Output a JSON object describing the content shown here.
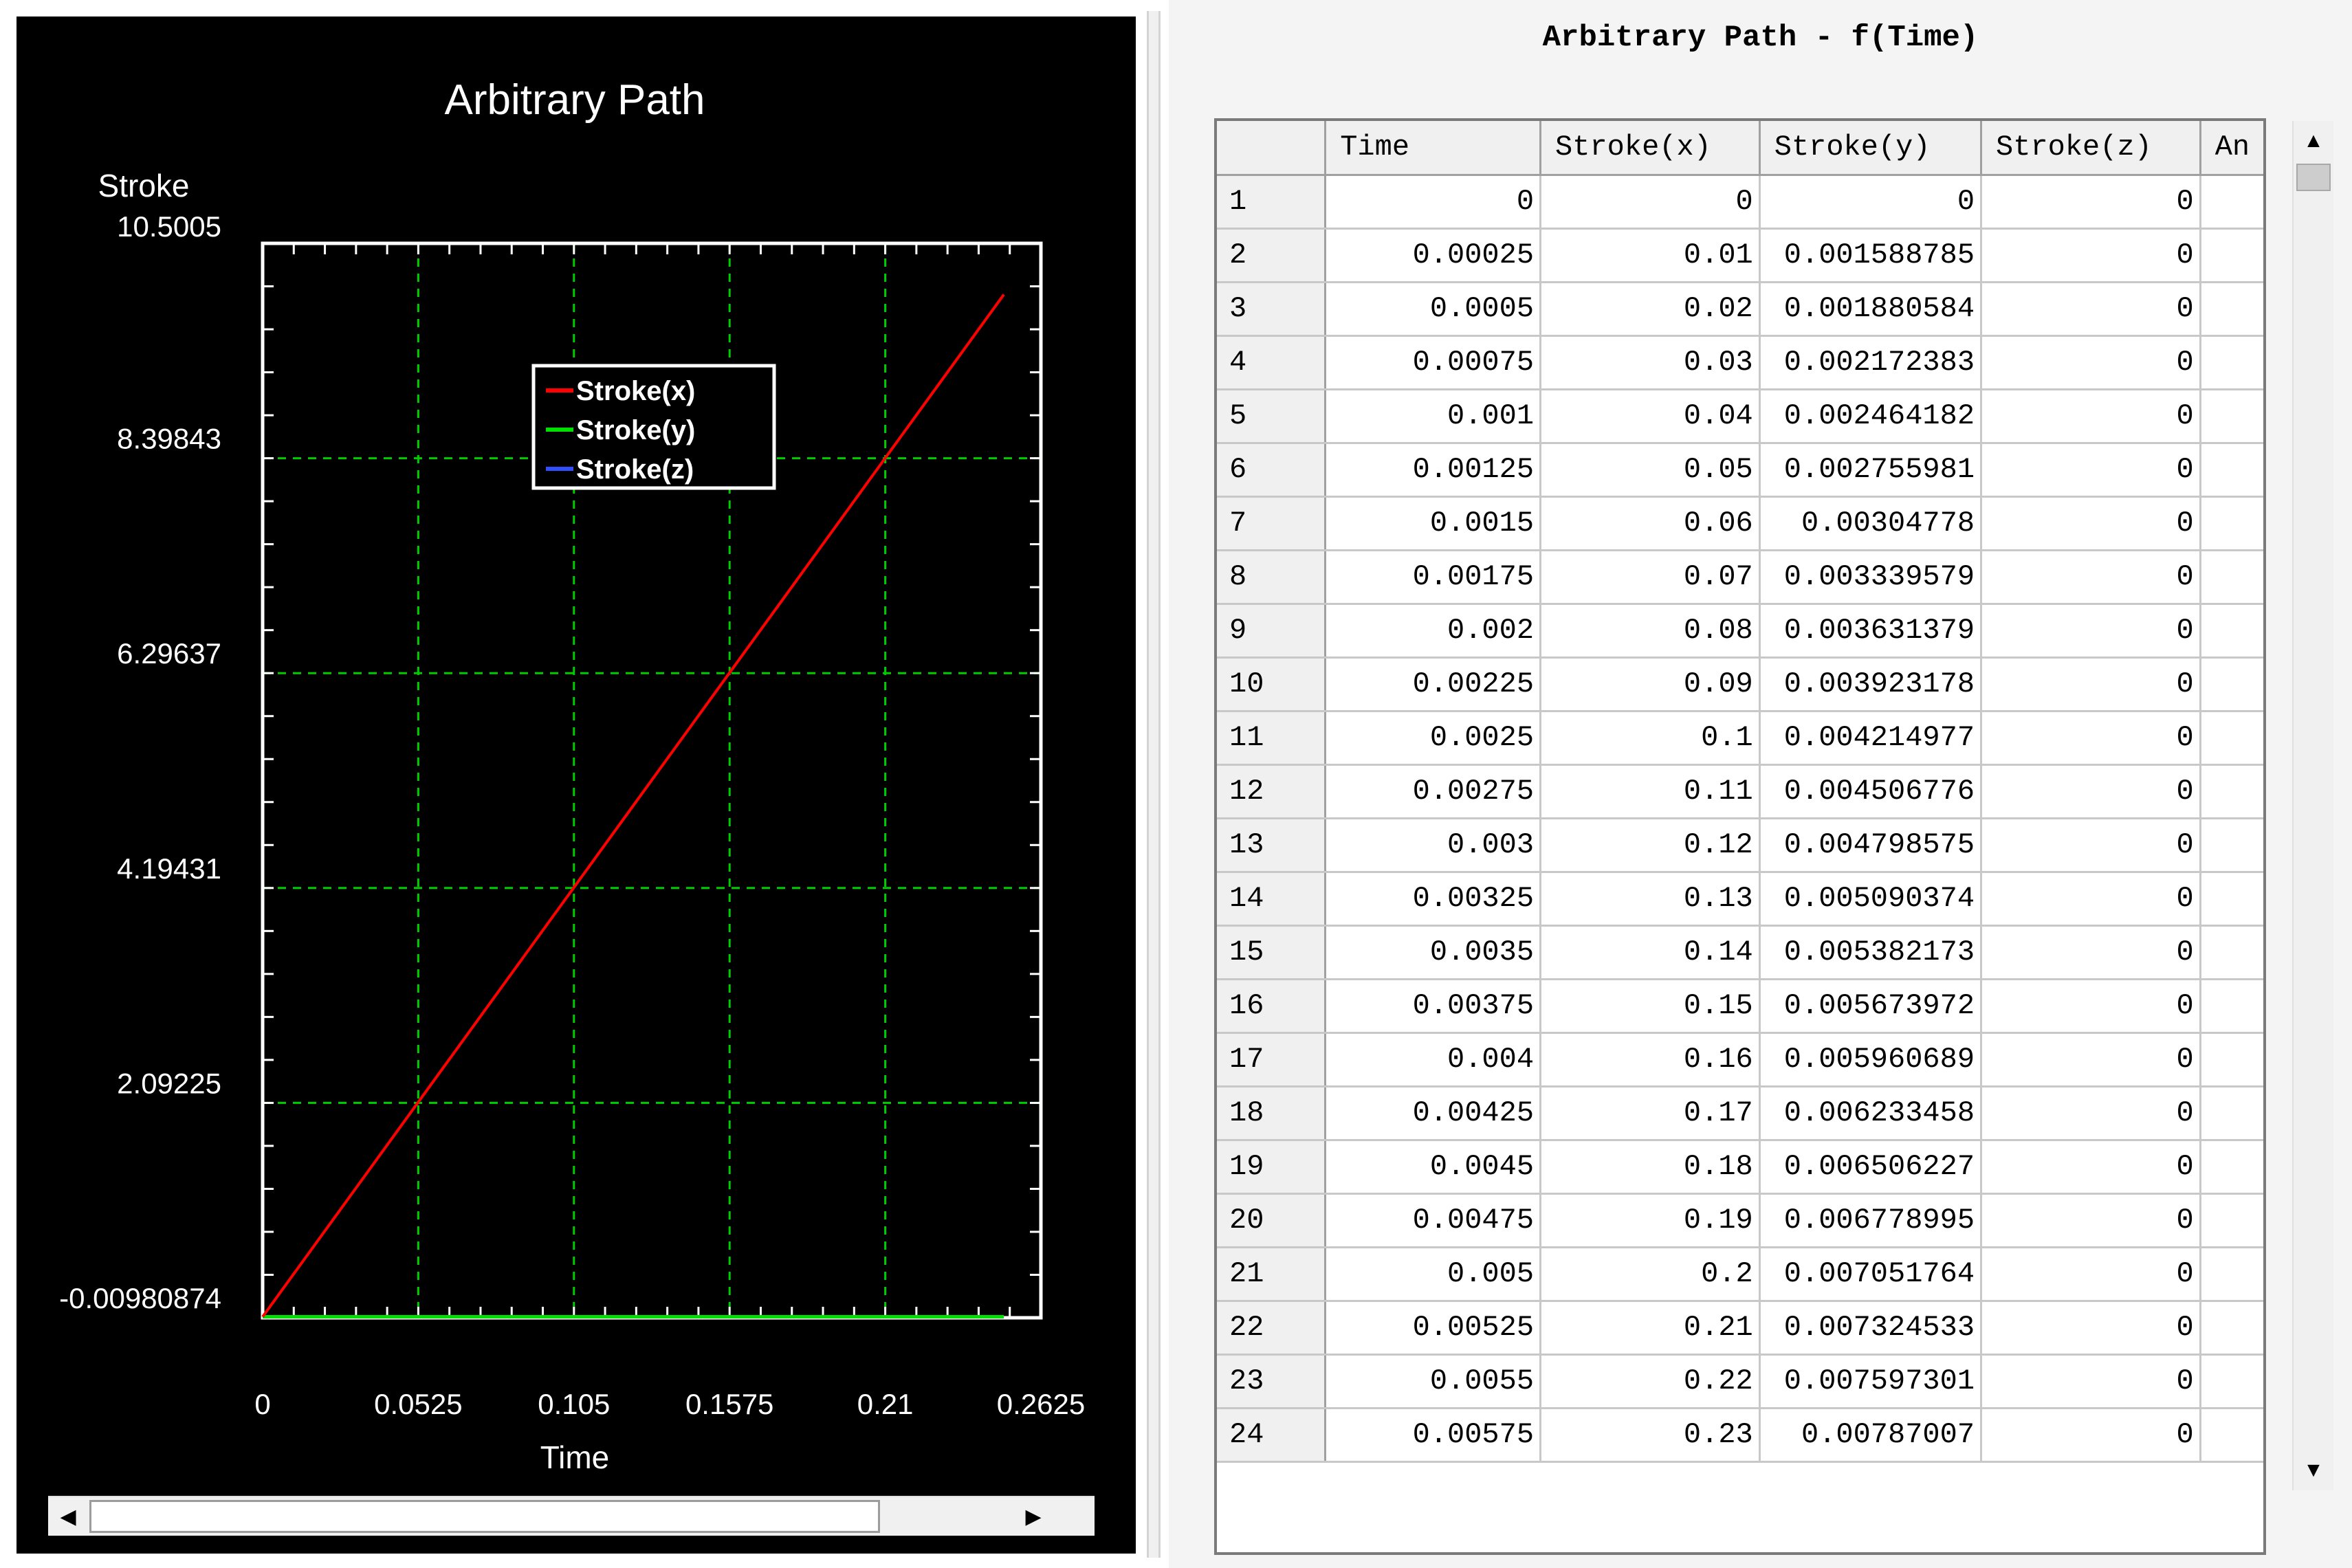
{
  "chart_data": {
    "type": "line",
    "title": "Arbitrary Path",
    "ylabel": "Stroke",
    "xlabel": "Time",
    "x_ticks": [
      0,
      0.0525,
      0.105,
      0.1575,
      0.21,
      0.2625
    ],
    "x_tick_labels": [
      "0",
      "0.0525",
      "0.105",
      "0.1575",
      "0.21",
      "0.2625"
    ],
    "y_ticks": [
      -0.00980874,
      2.09225,
      4.19431,
      6.29637,
      8.39843,
      10.5005
    ],
    "y_tick_labels": [
      "-0.00980874",
      "2.09225",
      "4.19431",
      "6.29637",
      "8.39843",
      "10.5005"
    ],
    "xlim": [
      0,
      0.2625
    ],
    "ylim": [
      -0.00980874,
      10.5005
    ],
    "grid": true,
    "legend_position": "top-center",
    "series": [
      {
        "name": "Stroke(x)",
        "color": "#ff0000",
        "x": [
          0,
          0.25
        ],
        "y": [
          0,
          10
        ]
      },
      {
        "name": "Stroke(y)",
        "color": "#00e000",
        "x": [
          0,
          0.25
        ],
        "y": [
          0,
          0.0
        ]
      },
      {
        "name": "Stroke(z)",
        "color": "#3050ff",
        "x": [
          0,
          0.25
        ],
        "y": [
          0,
          0
        ]
      }
    ]
  },
  "table": {
    "title": "Arbitrary Path - f(Time)",
    "columns": [
      "Time",
      "Stroke(x)",
      "Stroke(y)",
      "Stroke(z)",
      "An"
    ],
    "rows": [
      [
        "1",
        "0",
        "0",
        "0",
        "0"
      ],
      [
        "2",
        "0.00025",
        "0.01",
        "0.001588785",
        "0"
      ],
      [
        "3",
        "0.0005",
        "0.02",
        "0.001880584",
        "0"
      ],
      [
        "4",
        "0.00075",
        "0.03",
        "0.002172383",
        "0"
      ],
      [
        "5",
        "0.001",
        "0.04",
        "0.002464182",
        "0"
      ],
      [
        "6",
        "0.00125",
        "0.05",
        "0.002755981",
        "0"
      ],
      [
        "7",
        "0.0015",
        "0.06",
        "0.00304778",
        "0"
      ],
      [
        "8",
        "0.00175",
        "0.07",
        "0.003339579",
        "0"
      ],
      [
        "9",
        "0.002",
        "0.08",
        "0.003631379",
        "0"
      ],
      [
        "10",
        "0.00225",
        "0.09",
        "0.003923178",
        "0"
      ],
      [
        "11",
        "0.0025",
        "0.1",
        "0.004214977",
        "0"
      ],
      [
        "12",
        "0.00275",
        "0.11",
        "0.004506776",
        "0"
      ],
      [
        "13",
        "0.003",
        "0.12",
        "0.004798575",
        "0"
      ],
      [
        "14",
        "0.00325",
        "0.13",
        "0.005090374",
        "0"
      ],
      [
        "15",
        "0.0035",
        "0.14",
        "0.005382173",
        "0"
      ],
      [
        "16",
        "0.00375",
        "0.15",
        "0.005673972",
        "0"
      ],
      [
        "17",
        "0.004",
        "0.16",
        "0.005960689",
        "0"
      ],
      [
        "18",
        "0.00425",
        "0.17",
        "0.006233458",
        "0"
      ],
      [
        "19",
        "0.0045",
        "0.18",
        "0.006506227",
        "0"
      ],
      [
        "20",
        "0.00475",
        "0.19",
        "0.006778995",
        "0"
      ],
      [
        "21",
        "0.005",
        "0.2",
        "0.007051764",
        "0"
      ],
      [
        "22",
        "0.00525",
        "0.21",
        "0.007324533",
        "0"
      ],
      [
        "23",
        "0.0055",
        "0.22",
        "0.007597301",
        "0"
      ],
      [
        "24",
        "0.00575",
        "0.23",
        "0.00787007",
        "0"
      ]
    ]
  },
  "scrollbars": {
    "up_arrow_icon": "triangle-up-icon",
    "down_arrow_icon": "triangle-down-icon",
    "left_arrow_icon": "triangle-left-icon",
    "right_arrow_icon": "triangle-right-icon"
  }
}
